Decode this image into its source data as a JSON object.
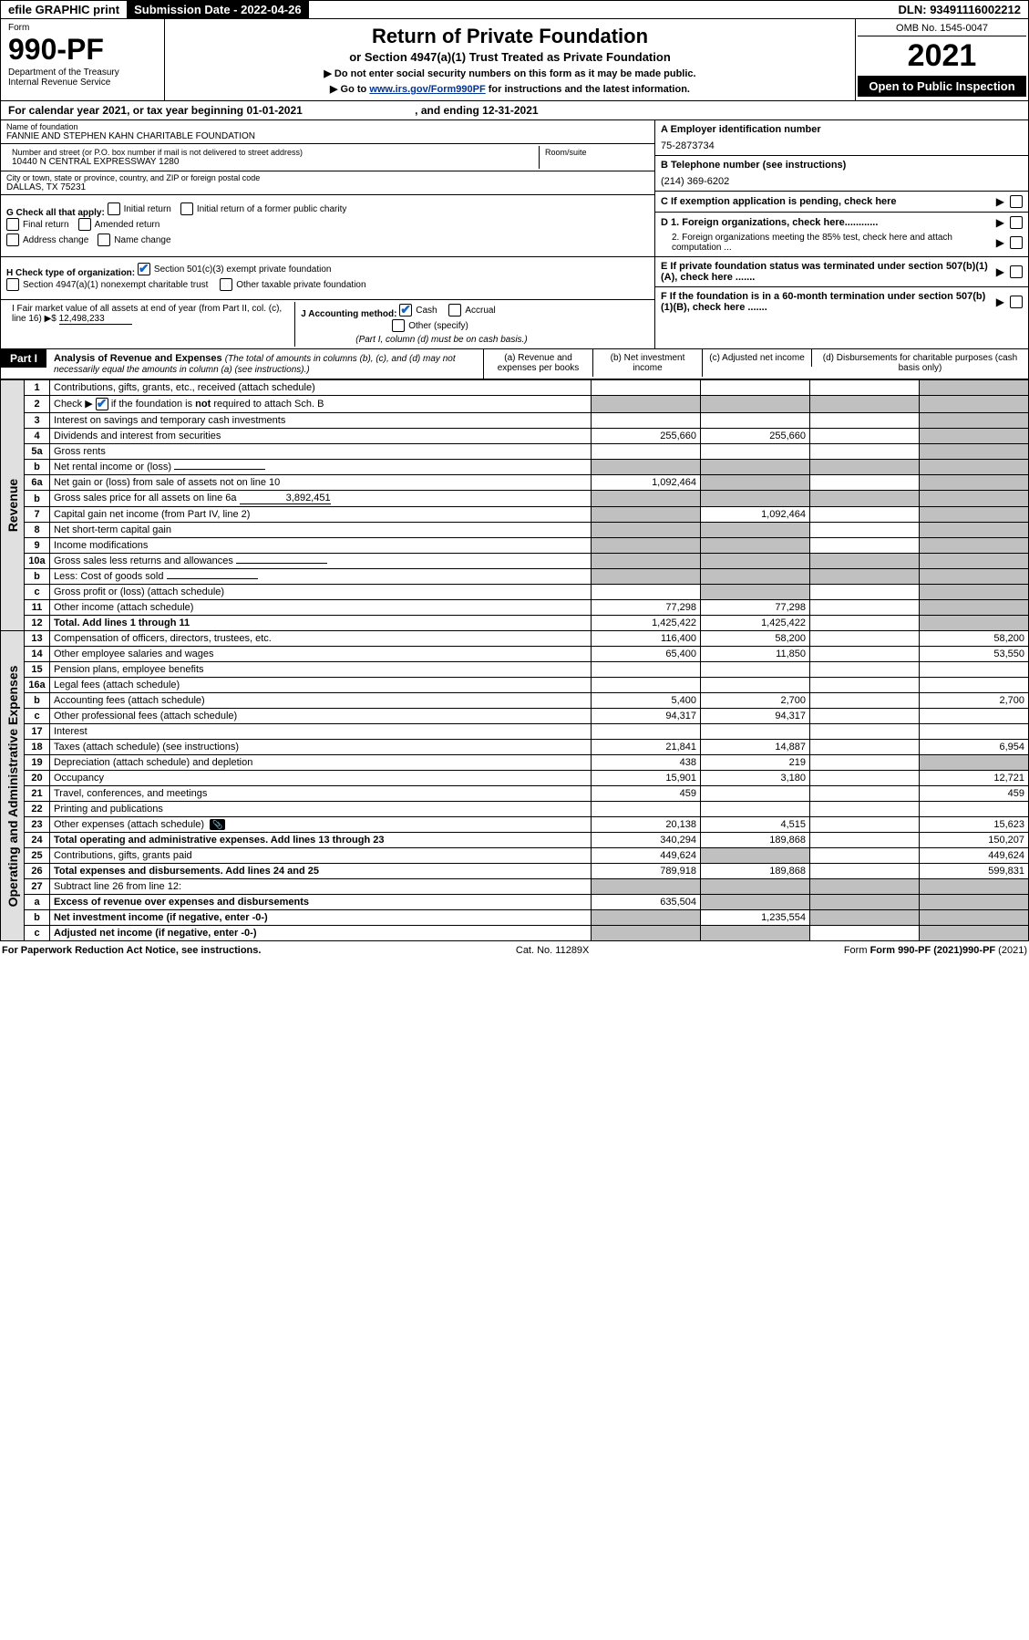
{
  "topbar": {
    "efile": "efile GRAPHIC print",
    "submission": "Submission Date - 2022-04-26",
    "dln": "DLN: 93491116002212"
  },
  "header": {
    "form": "Form",
    "formno": "990-PF",
    "dept": "Department of the Treasury\nInternal Revenue Service",
    "title": "Return of Private Foundation",
    "subtitle1": "or Section 4947(a)(1) Trust Treated as Private Foundation",
    "subtitle2a": "▶ Do not enter social security numbers on this form as it may be made public.",
    "subtitle2b": "▶ Go to ",
    "link": "www.irs.gov/Form990PF",
    "subtitle2c": " for instructions and the latest information.",
    "omb": "OMB No. 1545-0047",
    "year": "2021",
    "open": "Open to Public Inspection"
  },
  "calyear": {
    "text1": "For calendar year 2021, or tax year beginning 01-01-2021",
    "text2": ", and ending 12-31-2021"
  },
  "ident": {
    "name_lbl": "Name of foundation",
    "name": "FANNIE AND STEPHEN KAHN CHARITABLE FOUNDATION",
    "addr_lbl": "Number and street (or P.O. box number if mail is not delivered to street address)",
    "addr": "10440 N CENTRAL EXPRESSWAY 1280",
    "room_lbl": "Room/suite",
    "city_lbl": "City or town, state or province, country, and ZIP or foreign postal code",
    "city": "DALLAS, TX  75231",
    "a_lbl": "A Employer identification number",
    "a_val": "75-2873734",
    "b_lbl": "B Telephone number (see instructions)",
    "b_val": "(214) 369-6202",
    "c_lbl": "C If exemption application is pending, check here",
    "d1": "D 1. Foreign organizations, check here............",
    "d2": "2. Foreign organizations meeting the 85% test, check here and attach computation ...",
    "e": "E  If private foundation status was terminated under section 507(b)(1)(A), check here .......",
    "f": "F  If the foundation is in a 60-month termination under section 507(b)(1)(B), check here .......",
    "g_lbl": "G Check all that apply:",
    "g_opts": [
      "Initial return",
      "Initial return of a former public charity",
      "Final return",
      "Amended return",
      "Address change",
      "Name change"
    ],
    "h_lbl": "H Check type of organization:",
    "h_opts": [
      "Section 501(c)(3) exempt private foundation",
      "Section 4947(a)(1) nonexempt charitable trust",
      "Other taxable private foundation"
    ],
    "i_lbl": "I Fair market value of all assets at end of year (from Part II, col. (c), line 16) ▶$",
    "i_val": "12,498,233",
    "j_lbl": "J Accounting method:",
    "j_cash": "Cash",
    "j_accrual": "Accrual",
    "j_other": "Other (specify)",
    "j_note": "(Part I, column (d) must be on cash basis.)"
  },
  "part1": {
    "label": "Part I",
    "title": "Analysis of Revenue and Expenses",
    "note": "(The total of amounts in columns (b), (c), and (d) may not necessarily equal the amounts in column (a) (see instructions).)",
    "col_a": "(a)  Revenue and expenses per books",
    "col_b": "(b)  Net investment income",
    "col_c": "(c)  Adjusted net income",
    "col_d": "(d)  Disbursements for charitable purposes (cash basis only)"
  },
  "vlabels": {
    "revenue": "Revenue",
    "expenses": "Operating and Administrative Expenses"
  },
  "rows": [
    {
      "n": "1",
      "d": "Contributions, gifts, grants, etc., received (attach schedule)",
      "a": "",
      "b": "",
      "c": "",
      "dd": ""
    },
    {
      "n": "2",
      "d": "Check ▶ ☑ if the foundation is not required to attach Sch. B",
      "a": "",
      "b": "",
      "c": "",
      "dd": "",
      "shadeA": true,
      "shadeB": true,
      "shadeC": true,
      "shadeD": true,
      "checkmark": true
    },
    {
      "n": "3",
      "d": "Interest on savings and temporary cash investments",
      "a": "",
      "b": "",
      "c": "",
      "dd": ""
    },
    {
      "n": "4",
      "d": "Dividends and interest from securities",
      "a": "255,660",
      "b": "255,660",
      "c": "",
      "dd": ""
    },
    {
      "n": "5a",
      "d": "Gross rents",
      "a": "",
      "b": "",
      "c": "",
      "dd": ""
    },
    {
      "n": "b",
      "d": "Net rental income or (loss)",
      "a": "",
      "b": "",
      "c": "",
      "dd": "",
      "shadeA": true,
      "shadeB": true,
      "shadeC": true,
      "shadeD": true,
      "inline": true
    },
    {
      "n": "6a",
      "d": "Net gain or (loss) from sale of assets not on line 10",
      "a": "1,092,464",
      "b": "",
      "c": "",
      "dd": "",
      "shadeB": true
    },
    {
      "n": "b",
      "d": "Gross sales price for all assets on line 6a",
      "a": "",
      "b": "",
      "c": "",
      "dd": "",
      "shadeA": true,
      "shadeB": true,
      "shadeC": true,
      "shadeD": true,
      "inline": true,
      "inlineVal": "3,892,451"
    },
    {
      "n": "7",
      "d": "Capital gain net income (from Part IV, line 2)",
      "a": "",
      "b": "1,092,464",
      "c": "",
      "dd": "",
      "shadeA": true
    },
    {
      "n": "8",
      "d": "Net short-term capital gain",
      "a": "",
      "b": "",
      "c": "",
      "dd": "",
      "shadeA": true,
      "shadeB": true
    },
    {
      "n": "9",
      "d": "Income modifications",
      "a": "",
      "b": "",
      "c": "",
      "dd": "",
      "shadeA": true,
      "shadeB": true
    },
    {
      "n": "10a",
      "d": "Gross sales less returns and allowances",
      "a": "",
      "b": "",
      "c": "",
      "dd": "",
      "shadeA": true,
      "shadeB": true,
      "shadeC": true,
      "shadeD": true,
      "inline": true
    },
    {
      "n": "b",
      "d": "Less: Cost of goods sold",
      "a": "",
      "b": "",
      "c": "",
      "dd": "",
      "shadeA": true,
      "shadeB": true,
      "shadeC": true,
      "shadeD": true,
      "inline": true
    },
    {
      "n": "c",
      "d": "Gross profit or (loss) (attach schedule)",
      "a": "",
      "b": "",
      "c": "",
      "dd": "",
      "shadeB": true
    },
    {
      "n": "11",
      "d": "Other income (attach schedule)",
      "a": "77,298",
      "b": "77,298",
      "c": "",
      "dd": ""
    },
    {
      "n": "12",
      "d": "Total. Add lines 1 through 11",
      "a": "1,425,422",
      "b": "1,425,422",
      "c": "",
      "dd": "",
      "bold": true
    },
    {
      "n": "13",
      "d": "Compensation of officers, directors, trustees, etc.",
      "a": "116,400",
      "b": "58,200",
      "c": "",
      "dd": "58,200"
    },
    {
      "n": "14",
      "d": "Other employee salaries and wages",
      "a": "65,400",
      "b": "11,850",
      "c": "",
      "dd": "53,550"
    },
    {
      "n": "15",
      "d": "Pension plans, employee benefits",
      "a": "",
      "b": "",
      "c": "",
      "dd": ""
    },
    {
      "n": "16a",
      "d": "Legal fees (attach schedule)",
      "a": "",
      "b": "",
      "c": "",
      "dd": ""
    },
    {
      "n": "b",
      "d": "Accounting fees (attach schedule)",
      "a": "5,400",
      "b": "2,700",
      "c": "",
      "dd": "2,700"
    },
    {
      "n": "c",
      "d": "Other professional fees (attach schedule)",
      "a": "94,317",
      "b": "94,317",
      "c": "",
      "dd": ""
    },
    {
      "n": "17",
      "d": "Interest",
      "a": "",
      "b": "",
      "c": "",
      "dd": ""
    },
    {
      "n": "18",
      "d": "Taxes (attach schedule) (see instructions)",
      "a": "21,841",
      "b": "14,887",
      "c": "",
      "dd": "6,954"
    },
    {
      "n": "19",
      "d": "Depreciation (attach schedule) and depletion",
      "a": "438",
      "b": "219",
      "c": "",
      "dd": "",
      "shadeD": true
    },
    {
      "n": "20",
      "d": "Occupancy",
      "a": "15,901",
      "b": "3,180",
      "c": "",
      "dd": "12,721"
    },
    {
      "n": "21",
      "d": "Travel, conferences, and meetings",
      "a": "459",
      "b": "",
      "c": "",
      "dd": "459"
    },
    {
      "n": "22",
      "d": "Printing and publications",
      "a": "",
      "b": "",
      "c": "",
      "dd": ""
    },
    {
      "n": "23",
      "d": "Other expenses (attach schedule)",
      "a": "20,138",
      "b": "4,515",
      "c": "",
      "dd": "15,623",
      "icon": true
    },
    {
      "n": "24",
      "d": "Total operating and administrative expenses. Add lines 13 through 23",
      "a": "340,294",
      "b": "189,868",
      "c": "",
      "dd": "150,207",
      "bold": true
    },
    {
      "n": "25",
      "d": "Contributions, gifts, grants paid",
      "a": "449,624",
      "b": "",
      "c": "",
      "dd": "449,624",
      "shadeB": true
    },
    {
      "n": "26",
      "d": "Total expenses and disbursements. Add lines 24 and 25",
      "a": "789,918",
      "b": "189,868",
      "c": "",
      "dd": "599,831",
      "bold": true
    },
    {
      "n": "27",
      "d": "Subtract line 26 from line 12:",
      "a": "",
      "b": "",
      "c": "",
      "dd": "",
      "shadeA": true,
      "shadeB": true,
      "shadeC": true,
      "shadeD": true
    },
    {
      "n": "a",
      "d": "Excess of revenue over expenses and disbursements",
      "a": "635,504",
      "b": "",
      "c": "",
      "dd": "",
      "bold": true,
      "shadeB": true,
      "shadeC": true,
      "shadeD": true
    },
    {
      "n": "b",
      "d": "Net investment income (if negative, enter -0-)",
      "a": "",
      "b": "1,235,554",
      "c": "",
      "dd": "",
      "bold": true,
      "shadeA": true,
      "shadeC": true,
      "shadeD": true
    },
    {
      "n": "c",
      "d": "Adjusted net income (if negative, enter -0-)",
      "a": "",
      "b": "",
      "c": "",
      "dd": "",
      "bold": true,
      "shadeA": true,
      "shadeB": true,
      "shadeD": true
    }
  ],
  "footer": {
    "left": "For Paperwork Reduction Act Notice, see instructions.",
    "mid": "Cat. No. 11289X",
    "right": "Form 990-PF (2021)"
  },
  "colors": {
    "shade": "#c0c0c0",
    "vtext_bg": "#e0e0e0",
    "link": "#003399",
    "check": "#2e7d32"
  }
}
